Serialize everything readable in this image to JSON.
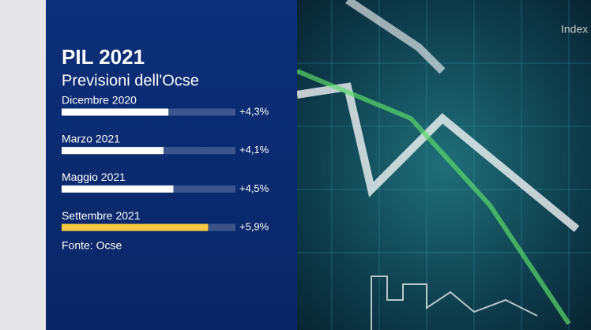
{
  "chart_data": {
    "type": "bar",
    "orientation": "horizontal",
    "title": "PIL 2021",
    "subtitle": "Previsioni dell'Ocse",
    "categories": [
      "Dicembre 2020",
      "Marzo 2021",
      "Maggio 2021",
      "Settembre 2021"
    ],
    "values": [
      4.3,
      4.1,
      4.5,
      5.9
    ],
    "value_labels": [
      "+4,3%",
      "+4,1%",
      "+4,5%",
      "+5,9%"
    ],
    "colors": [
      "#ffffff",
      "#ffffff",
      "#ffffff",
      "#f5c842"
    ],
    "xlim": [
      0,
      7
    ],
    "source": "Fonte: Ocse"
  },
  "background_text": "Index"
}
